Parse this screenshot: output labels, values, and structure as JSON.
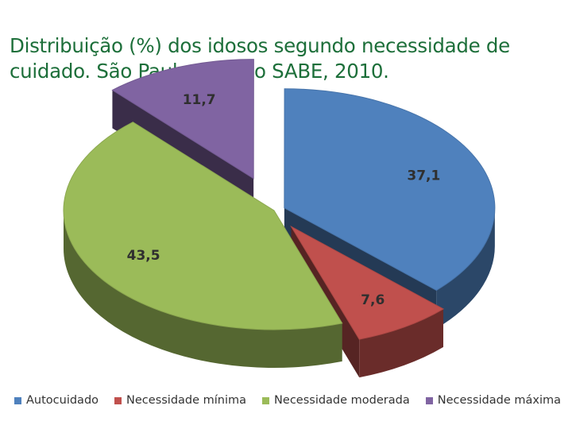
{
  "title": "Distribuição (%) dos idosos segundo necessidade de cuidado. São Paulo. Estudo SABE, 2010.",
  "chart_data": {
    "type": "pie",
    "style": "3d-exploded",
    "title": "Distribuição (%) dos idosos segundo necessidade de cuidado. São Paulo. Estudo SABE, 2010.",
    "categories": [
      "Autocuidado",
      "Necessidade mínima",
      "Necessidade moderada",
      "Necessidade máxima"
    ],
    "values": [
      37.1,
      7.6,
      43.5,
      11.7
    ],
    "data_labels": [
      "37,1",
      "7,6",
      "43,5",
      "11,7"
    ],
    "colors": [
      "#4f81bd",
      "#c0504d",
      "#9bbb59",
      "#8064a2"
    ],
    "legend_position": "bottom"
  }
}
